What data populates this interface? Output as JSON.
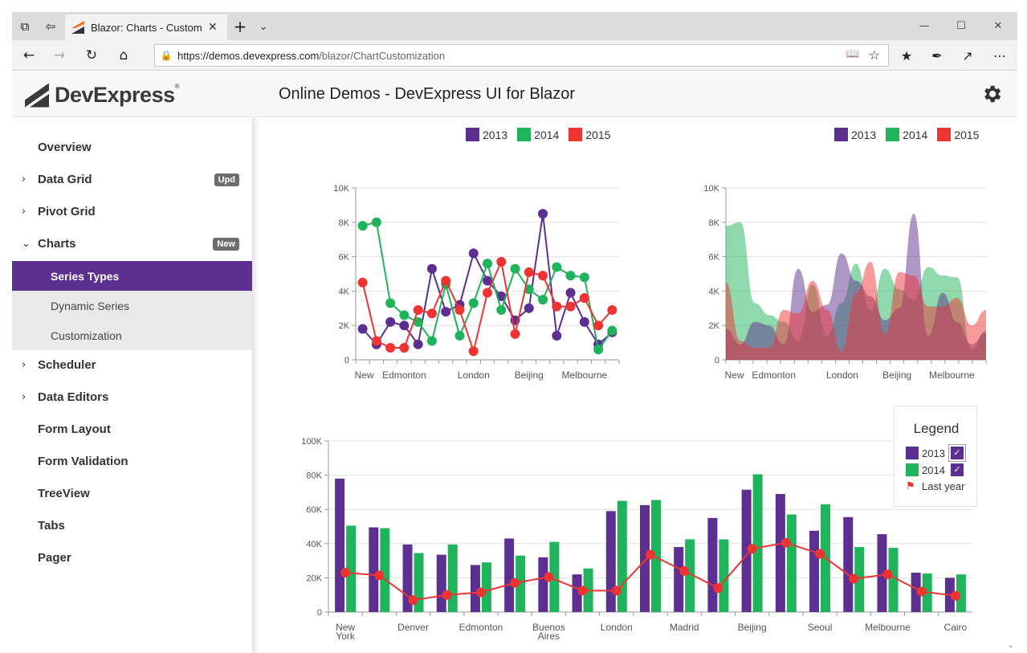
{
  "browser": {
    "tab_title": "Blazor: Charts - Custom",
    "url_host": "https://demos.devexpress.com",
    "url_path": "/blazor/ChartCustomization"
  },
  "header": {
    "logo_text": "DevExpress",
    "title": "Online Demos - DevExpress UI for Blazor"
  },
  "sidebar": {
    "items": [
      {
        "label": "Overview"
      },
      {
        "label": "Data Grid",
        "badge": "Upd"
      },
      {
        "label": "Pivot Grid"
      },
      {
        "label": "Charts",
        "badge": "New"
      },
      {
        "label": "Series Types"
      },
      {
        "label": "Dynamic Series"
      },
      {
        "label": "Customization"
      },
      {
        "label": "Scheduler"
      },
      {
        "label": "Data Editors"
      },
      {
        "label": "Form Layout"
      },
      {
        "label": "Form Validation"
      },
      {
        "label": "TreeView"
      },
      {
        "label": "Tabs"
      },
      {
        "label": "Pager"
      }
    ]
  },
  "colors": {
    "y2013": "#5d2f90",
    "y2014": "#1fb35c",
    "y2015": "#ee3333",
    "accent": "#5d2f90"
  },
  "legend_box": {
    "title": "Legend",
    "items": [
      "2013",
      "2014",
      "Last year"
    ]
  },
  "chart_data": [
    {
      "type": "line",
      "title": "",
      "legend": "top",
      "ylim": [
        0,
        10000
      ],
      "yticks": [
        "0",
        "2K",
        "4K",
        "6K",
        "8K",
        "10K"
      ],
      "xticklabels": [
        "New",
        "Edmonton",
        "London",
        "Beijing",
        "Melbourne"
      ],
      "series": [
        {
          "name": "2013",
          "values": [
            1800,
            900,
            2200,
            2000,
            900,
            5300,
            2800,
            3200,
            6200,
            4600,
            3700,
            2300,
            3000,
            8500,
            1400,
            3900,
            2200,
            900,
            1600
          ]
        },
        {
          "name": "2014",
          "values": [
            7800,
            8000,
            3300,
            2600,
            2200,
            1100,
            4400,
            1400,
            3300,
            5600,
            2900,
            5300,
            4100,
            3500,
            5400,
            4900,
            4800,
            600,
            1700
          ]
        },
        {
          "name": "2015",
          "values": [
            4500,
            1100,
            700,
            700,
            2900,
            2700,
            4600,
            2900,
            500,
            3900,
            5700,
            1500,
            5100,
            4900,
            3100,
            3100,
            3600,
            2000,
            2900
          ]
        }
      ]
    },
    {
      "type": "area",
      "title": "",
      "legend": "top-right",
      "ylim": [
        0,
        10000
      ],
      "yticks": [
        "0",
        "2K",
        "4K",
        "6K",
        "8K",
        "10K"
      ],
      "xticklabels": [
        "New",
        "Edmonton",
        "London",
        "Beijing",
        "Melbourne"
      ],
      "series": [
        {
          "name": "2013",
          "values": [
            1800,
            900,
            2200,
            2000,
            900,
            5300,
            2800,
            3200,
            6200,
            4600,
            3700,
            2300,
            3000,
            8500,
            1400,
            3900,
            2200,
            900,
            1600
          ]
        },
        {
          "name": "2014",
          "values": [
            7800,
            8000,
            3300,
            2600,
            2200,
            1100,
            4400,
            1400,
            3300,
            5600,
            2900,
            5300,
            4100,
            3500,
            5400,
            4900,
            4800,
            600,
            1700
          ]
        },
        {
          "name": "2015",
          "values": [
            4500,
            1100,
            700,
            700,
            2900,
            2700,
            4600,
            2900,
            500,
            3900,
            5700,
            1500,
            5100,
            4900,
            3100,
            3100,
            3600,
            2000,
            2900
          ]
        }
      ]
    },
    {
      "type": "bar",
      "title": "",
      "legend": "right",
      "ylim": [
        0,
        100000
      ],
      "yticks": [
        "0",
        "20K",
        "40K",
        "60K",
        "80K",
        "100K"
      ],
      "categories": [
        "New York",
        "",
        "Denver",
        "",
        "Edmonton",
        "",
        "Buenos Aires",
        "",
        "London",
        "",
        "Madrid",
        "",
        "Beijing",
        "",
        "Seoul",
        "",
        "Melbourne",
        "",
        "Cairo"
      ],
      "series": [
        {
          "name": "2013",
          "values": [
            78000,
            49500,
            39500,
            33500,
            27500,
            43000,
            32000,
            22000,
            59000,
            62500,
            38000,
            55000,
            71500,
            69000,
            47500,
            55500,
            45500,
            23000,
            20000
          ]
        },
        {
          "name": "2014",
          "values": [
            50500,
            49000,
            34500,
            39500,
            29000,
            33000,
            41000,
            25500,
            65000,
            65500,
            42500,
            42500,
            80500,
            57000,
            63000,
            38000,
            37500,
            22500,
            22000
          ]
        },
        {
          "name": "Last year",
          "type": "line",
          "values": [
            23000,
            21500,
            7000,
            10000,
            11500,
            17000,
            20500,
            12500,
            12500,
            33500,
            24000,
            14000,
            37000,
            40500,
            34000,
            19500,
            22000,
            12000,
            9500
          ]
        }
      ]
    }
  ]
}
